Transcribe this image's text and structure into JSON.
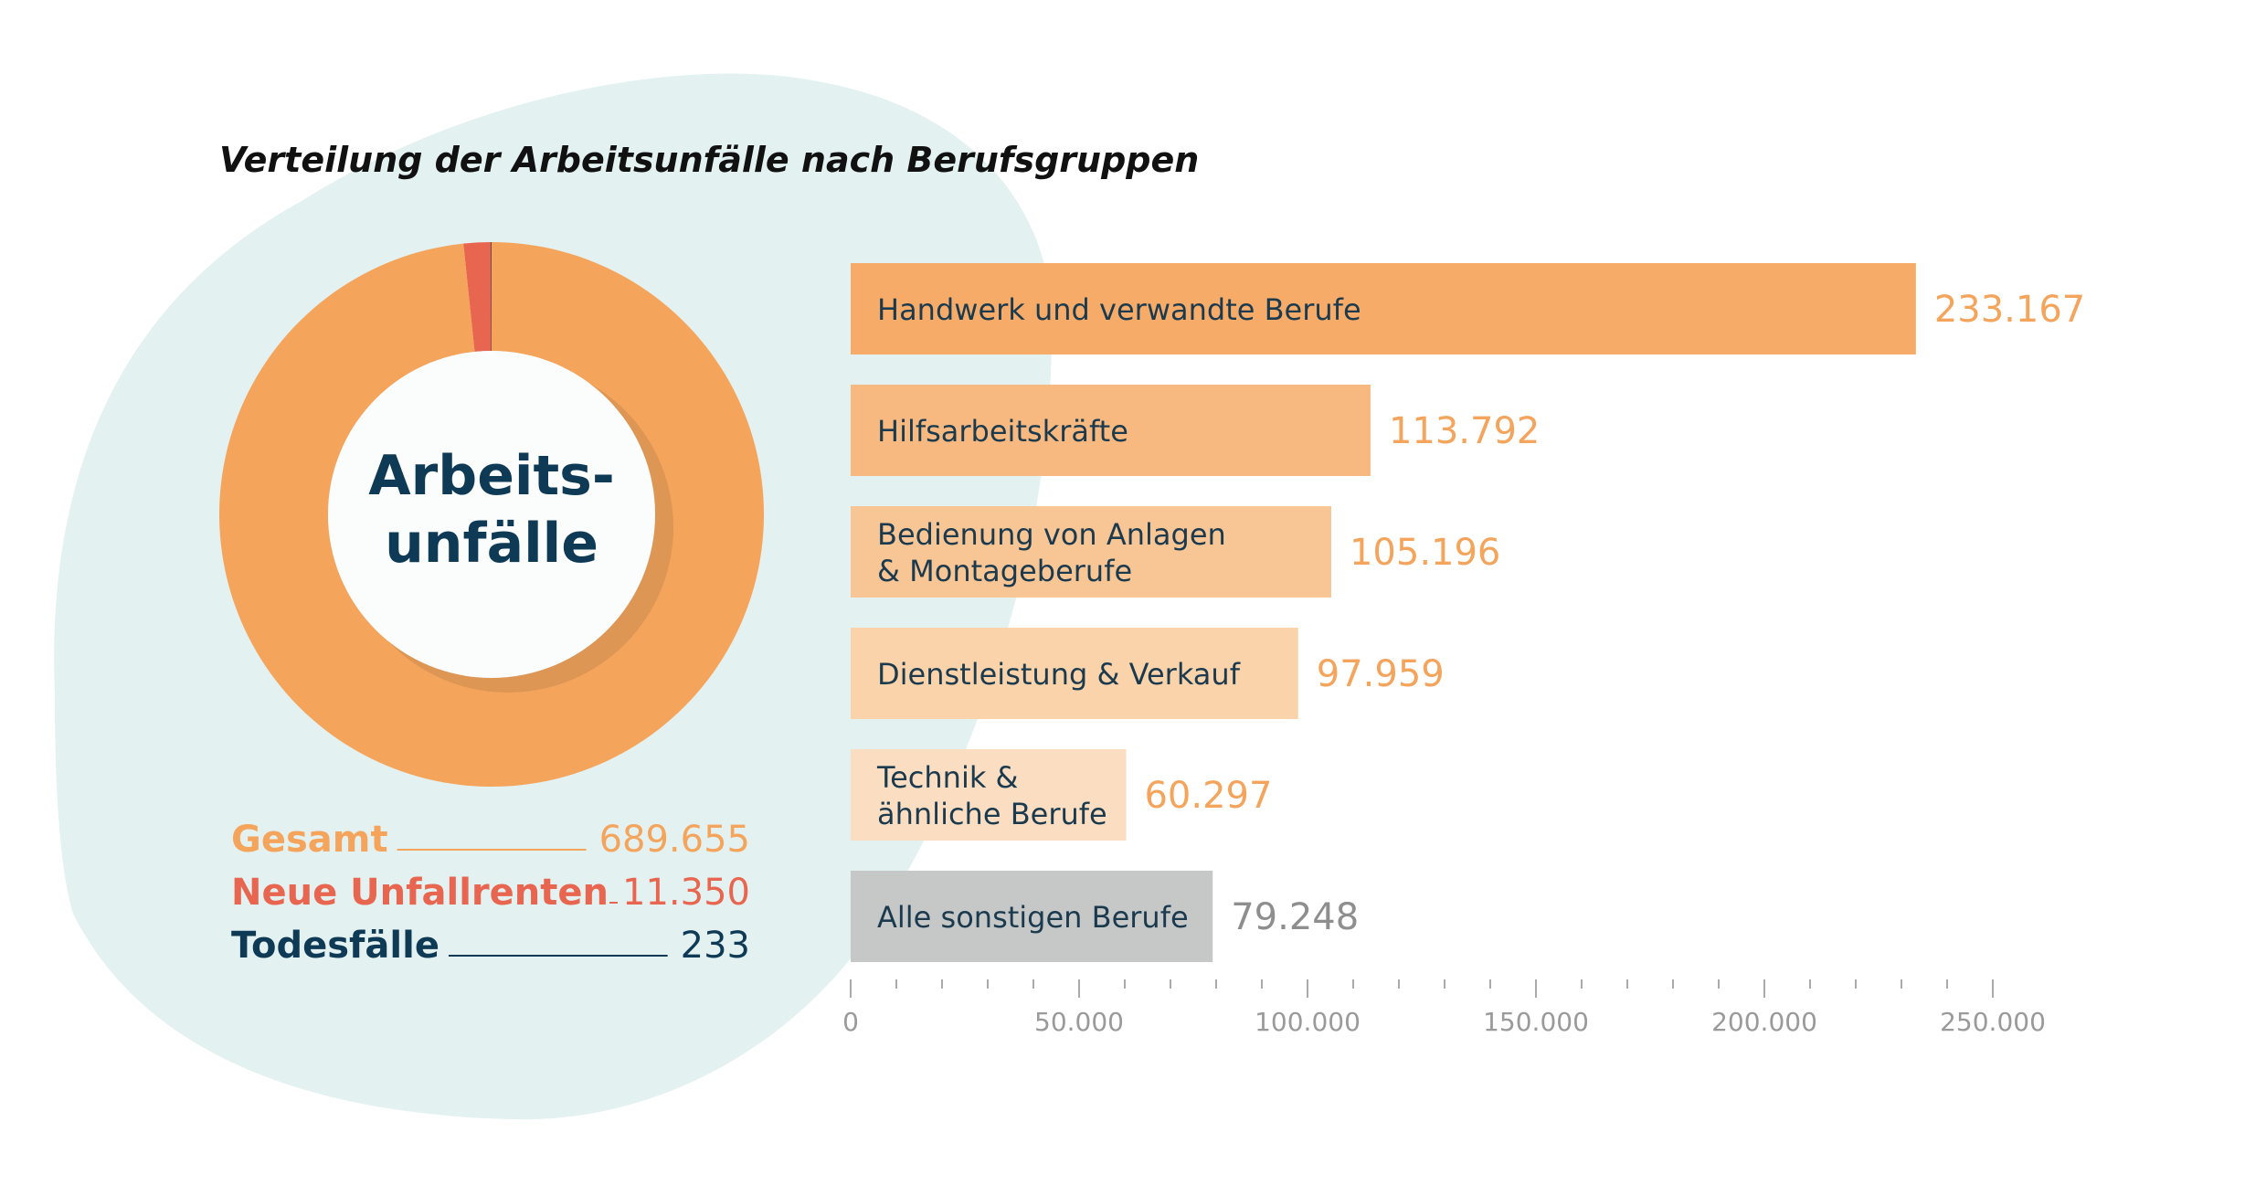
{
  "colors": {
    "background_blob": "#e3f1f1",
    "gesamt": "#f5a45c",
    "unfallrenten": "#e8664f",
    "todesfaelle": "#0e3a56",
    "bars": [
      "#f7ab68",
      "#f7b980",
      "#f8c595",
      "#fad3ab",
      "#fbdec2",
      "#c6c8c8"
    ],
    "value_orange": "#f5a45c",
    "value_gray": "#8e8e8e"
  },
  "chart_data": [
    {
      "type": "pie",
      "variant": "donut",
      "center_label": [
        "Arbeits-",
        "unfälle"
      ],
      "slices": [
        {
          "name": "Gesamt",
          "value": 689655,
          "display": "689.655"
        },
        {
          "name": "Neue Unfallrenten",
          "value": 11350,
          "display": "11.350"
        },
        {
          "name": "Todesfälle",
          "value": 233,
          "display": "233"
        }
      ],
      "legend_position": "bottom"
    },
    {
      "type": "bar",
      "orientation": "horizontal",
      "title": "Verteilung der Arbeitsunfälle nach Berufsgruppen",
      "categories": [
        [
          "Handwerk und verwandte Berufe"
        ],
        [
          "Hilfsarbeitskräfte"
        ],
        [
          "Bedienung von Anlagen",
          "& Montageberufe"
        ],
        [
          "Dienstleistung & Verkauf"
        ],
        [
          "Technik &",
          "ähnliche Berufe"
        ],
        [
          "Alle sonstigen Berufe"
        ]
      ],
      "values": [
        233167,
        113792,
        105196,
        97959,
        60297,
        79248
      ],
      "value_labels": [
        "233.167",
        "113.792",
        "105.196",
        "97.959",
        "60.297",
        "79.248"
      ],
      "xlim": [
        0,
        250000
      ],
      "major_ticks": [
        0,
        50000,
        100000,
        150000,
        200000,
        250000
      ],
      "tick_labels": [
        "0",
        "50.000",
        "100.000",
        "150.000",
        "200.000",
        "250.000"
      ],
      "minor_tick_step": 10000,
      "grid": false
    }
  ]
}
